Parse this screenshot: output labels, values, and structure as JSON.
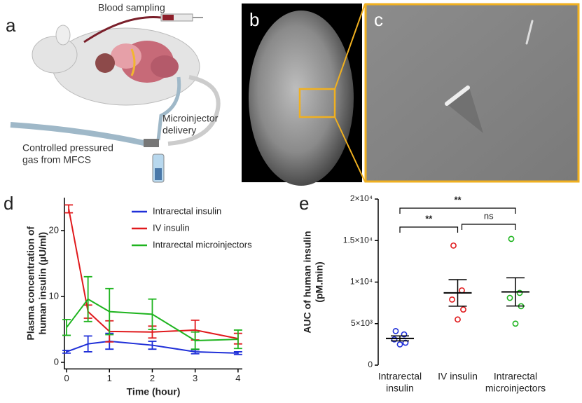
{
  "panels": {
    "a": {
      "label": "a",
      "annotations": [
        [
          "Blood sampling"
        ],
        [
          "Microinjector",
          "delivery"
        ],
        [
          "Controlled pressured",
          "gas from MFCS"
        ]
      ]
    },
    "b": {
      "label": "b"
    },
    "c": {
      "label": "c"
    },
    "d": {
      "label": "d"
    },
    "e": {
      "label": "e"
    }
  },
  "chart_data": [
    {
      "type": "line",
      "xlabel": "Time (hour)",
      "ylabel": [
        "Plasma concentration of",
        "human insulin (µU/ml)"
      ],
      "xlim": [
        -0.05,
        4.1
      ],
      "xticks": [
        0,
        1,
        2,
        3,
        4
      ],
      "ylim": [
        -1,
        25
      ],
      "yticks": [
        0,
        10,
        20
      ],
      "series": [
        {
          "name": "Intrarectal insulin",
          "color": "#1f2fd8",
          "x": [
            0,
            0.5,
            1,
            2,
            3,
            4
          ],
          "values": [
            1.6,
            2.8,
            3.2,
            2.6,
            1.6,
            1.4
          ],
          "errors": [
            0.2,
            1.2,
            1.2,
            0.6,
            0.3,
            0.2
          ]
        },
        {
          "name": "IV insulin",
          "color": "#e0191c",
          "x": [
            0.05,
            0.5,
            1,
            2,
            3,
            4
          ],
          "values": [
            23.3,
            7.7,
            4.7,
            4.6,
            4.9,
            3.6
          ],
          "errors": [
            0.6,
            1.0,
            1.6,
            0.9,
            1.5,
            0.8
          ]
        },
        {
          "name": "Intrarectal microinjectors",
          "color": "#1fb41f",
          "x": [
            0,
            0.5,
            1,
            2,
            3,
            4
          ],
          "values": [
            5.3,
            9.6,
            7.7,
            7.3,
            3.3,
            3.5
          ],
          "errors": [
            1.2,
            3.4,
            3.5,
            2.3,
            1.3,
            1.4
          ]
        }
      ]
    },
    {
      "type": "dotplot",
      "ylabel": [
        "AUC of human insulin",
        "(pM.min)"
      ],
      "categories": [
        [
          "Intrarectal",
          "insulin"
        ],
        [
          "IV insulin"
        ],
        [
          "Intrarectal",
          "microinjectors"
        ]
      ],
      "colors": [
        "#1f2fd8",
        "#e0191c",
        "#1fb41f"
      ],
      "ylim": [
        0,
        20000
      ],
      "yticks": [
        {
          "value": 0,
          "label": "0"
        },
        {
          "value": 5000,
          "label": "5×10³"
        },
        {
          "value": 10000,
          "label": "1×10⁴"
        },
        {
          "value": 15000,
          "label": "1.5×10⁴"
        },
        {
          "value": 20000,
          "label": "2×10⁴"
        }
      ],
      "points": [
        [
          4100,
          3700,
          3100,
          2700,
          2500
        ],
        [
          14400,
          9000,
          7900,
          6700,
          5500
        ],
        [
          15200,
          8700,
          8100,
          7100,
          5000
        ]
      ],
      "means": [
        3220,
        8700,
        8820
      ],
      "sem": [
        300,
        1600,
        1700
      ],
      "significance": [
        {
          "pair": [
            0,
            2
          ],
          "label": "**"
        },
        {
          "pair": [
            0,
            1
          ],
          "label": "**"
        },
        {
          "pair": [
            1,
            2
          ],
          "label": "ns"
        }
      ]
    }
  ]
}
